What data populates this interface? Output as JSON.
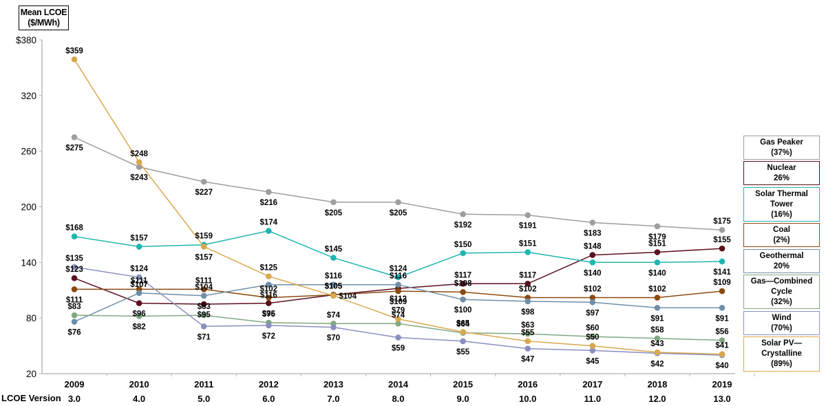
{
  "chart_data": {
    "type": "line",
    "title": "",
    "ylabel": "Mean LCOE ($/MWh)",
    "ylabel_lines": [
      "Mean LCOE",
      "($/MWh)"
    ],
    "xlabel": "",
    "x": [
      "2009",
      "2010",
      "2011",
      "2012",
      "2013",
      "2014",
      "2015",
      "2016",
      "2017",
      "2018",
      "2019"
    ],
    "x_secondary_label": "LCOE Version",
    "x_secondary": [
      "3.0",
      "4.0",
      "5.0",
      "6.0",
      "7.0",
      "8.0",
      "9.0",
      "10.0",
      "11.0",
      "12.0",
      "13.0"
    ],
    "ylim": [
      20,
      380
    ],
    "yticks": [
      20,
      80,
      140,
      200,
      260,
      320,
      380
    ],
    "ytick_labels": [
      "20",
      "80",
      "140",
      "200",
      "260",
      "320",
      "$380"
    ],
    "grid": false,
    "legend_position": "right",
    "series": [
      {
        "name": "Gas Peaker",
        "legend_lines": [
          "Gas Peaker",
          "(37%)"
        ],
        "color": "#9e9e9e",
        "values": [
          275,
          243,
          227,
          216,
          205,
          205,
          192,
          191,
          183,
          179,
          175
        ],
        "label_pos": [
          "below",
          "below",
          "below",
          "below",
          "below",
          "below",
          "below",
          "below",
          "below",
          "below",
          "above"
        ]
      },
      {
        "name": "Nuclear",
        "legend_lines": [
          "Nuclear",
          "26%"
        ],
        "color": "#5b0f1e",
        "values": [
          123,
          96,
          95,
          96,
          105,
          112,
          117,
          117,
          148,
          151,
          155
        ],
        "label_pos": [
          "above",
          "below",
          "below",
          "below",
          "above",
          "below",
          "above",
          "above",
          "above",
          "above",
          "above"
        ]
      },
      {
        "name": "Solar Thermal Tower",
        "legend_lines": [
          "Solar Thermal",
          "Tower",
          "(16%)"
        ],
        "color": "#1fb5b0",
        "values": [
          168,
          157,
          159,
          174,
          145,
          124,
          150,
          151,
          140,
          140,
          141
        ],
        "label_pos": [
          "above",
          "above",
          "above",
          "above",
          "above",
          "above",
          "above",
          "above",
          "below",
          "below",
          "below"
        ]
      },
      {
        "name": "Coal",
        "legend_lines": [
          "Coal",
          "(2%)"
        ],
        "color": "#8b4a10",
        "values": [
          111,
          111,
          111,
          102,
          105,
          109,
          108,
          102,
          102,
          102,
          109
        ],
        "label_pos": [
          "below",
          "above",
          "above",
          "above",
          "above",
          "below",
          "above",
          "above",
          "above",
          "above",
          "above"
        ]
      },
      {
        "name": "Geothermal",
        "legend_lines": [
          "Geothermal",
          "20%"
        ],
        "color": "#6f8fa8",
        "values": [
          76,
          107,
          104,
          116,
          116,
          116,
          100,
          98,
          97,
          91,
          91
        ],
        "label_pos": [
          "below",
          "above",
          "above",
          "below",
          "above",
          "above",
          "below",
          "below",
          "below",
          "below",
          "below"
        ]
      },
      {
        "name": "Gas—Combined Cycle",
        "legend_lines": [
          "Gas—Combined",
          "Cycle",
          "(32%)"
        ],
        "color": "#82a882",
        "values": [
          83,
          82,
          83,
          75,
          74,
          74,
          64,
          63,
          60,
          58,
          56
        ],
        "label_pos": [
          "above",
          "below",
          "above",
          "above",
          "above",
          "above",
          "above",
          "above",
          "above",
          "above",
          "above"
        ]
      },
      {
        "name": "Wind",
        "legend_lines": [
          "Wind",
          "(70%)"
        ],
        "color": "#8a8fc0",
        "values": [
          135,
          124,
          71,
          72,
          70,
          59,
          55,
          47,
          45,
          42,
          40
        ],
        "label_pos": [
          "above",
          "above",
          "below",
          "below",
          "below",
          "below",
          "below",
          "below",
          "below",
          "below",
          "below"
        ]
      },
      {
        "name": "Solar PV—Crystalline",
        "legend_lines": [
          "Solar PV—",
          "Crystalline",
          "(89%)"
        ],
        "color": "#d9a84e",
        "values": [
          359,
          248,
          157,
          125,
          104,
          79,
          65,
          55,
          50,
          43,
          41
        ],
        "label_pos": [
          "above",
          "above",
          "below",
          "above",
          "right",
          "above",
          "above",
          "above",
          "above",
          "above",
          "above"
        ]
      }
    ]
  }
}
